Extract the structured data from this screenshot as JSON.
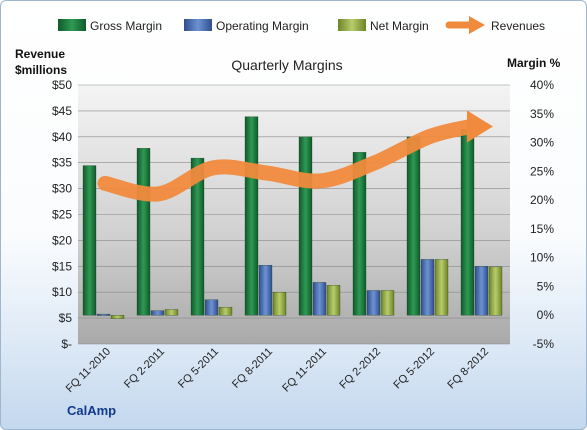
{
  "chart_data": {
    "type": "bar",
    "title": "Quarterly Margins",
    "left_axis_label_line1": "Revenue",
    "left_axis_label_line2": "$millions",
    "right_axis_label": "Margin %",
    "source_label": "CalAmp",
    "categories": [
      "FQ 11-2010",
      "FQ 2-2011",
      "FQ 5-2011",
      "FQ 8-2011",
      "FQ 11-2011",
      "FQ 2-2012",
      "FQ 5-2012",
      "FQ 8-2012"
    ],
    "left_axis": {
      "range": [
        0,
        50
      ],
      "ticks": [
        0,
        5,
        10,
        15,
        20,
        25,
        30,
        35,
        40,
        45,
        50
      ],
      "tick_labels": [
        "$-",
        "$5",
        "$10",
        "$15",
        "$20",
        "$25",
        "$30",
        "$35",
        "$40",
        "$45",
        "$50"
      ]
    },
    "right_axis": {
      "range": [
        -5,
        40
      ],
      "ticks": [
        -5,
        0,
        5,
        10,
        15,
        20,
        25,
        30,
        35,
        40
      ],
      "tick_labels": [
        "-5%",
        "0%",
        "5%",
        "10%",
        "15%",
        "20%",
        "25%",
        "30%",
        "35%",
        "40%"
      ]
    },
    "series": [
      {
        "name": "Gross Margin",
        "axis": "right",
        "color": "#1e7a3e",
        "values": [
          26,
          29,
          27.3,
          34.5,
          31,
          28.3,
          31,
          32.3
        ]
      },
      {
        "name": "Operating Margin",
        "axis": "right",
        "color": "#4a72b8",
        "values": [
          0.2,
          0.8,
          2.7,
          8.7,
          5.7,
          4.3,
          9.7,
          8.5
        ]
      },
      {
        "name": "Net Margin",
        "axis": "right",
        "color": "#9bb24a",
        "values": [
          -0.6,
          1,
          1.4,
          4,
          5.2,
          4.3,
          9.7,
          8.4
        ]
      },
      {
        "name": "Revenues",
        "axis": "left",
        "type": "line",
        "color": "#f08a3c",
        "values": [
          31,
          29,
          34,
          33,
          31.5,
          35,
          40,
          42
        ]
      }
    ],
    "grid": true,
    "legend_position": "top"
  }
}
